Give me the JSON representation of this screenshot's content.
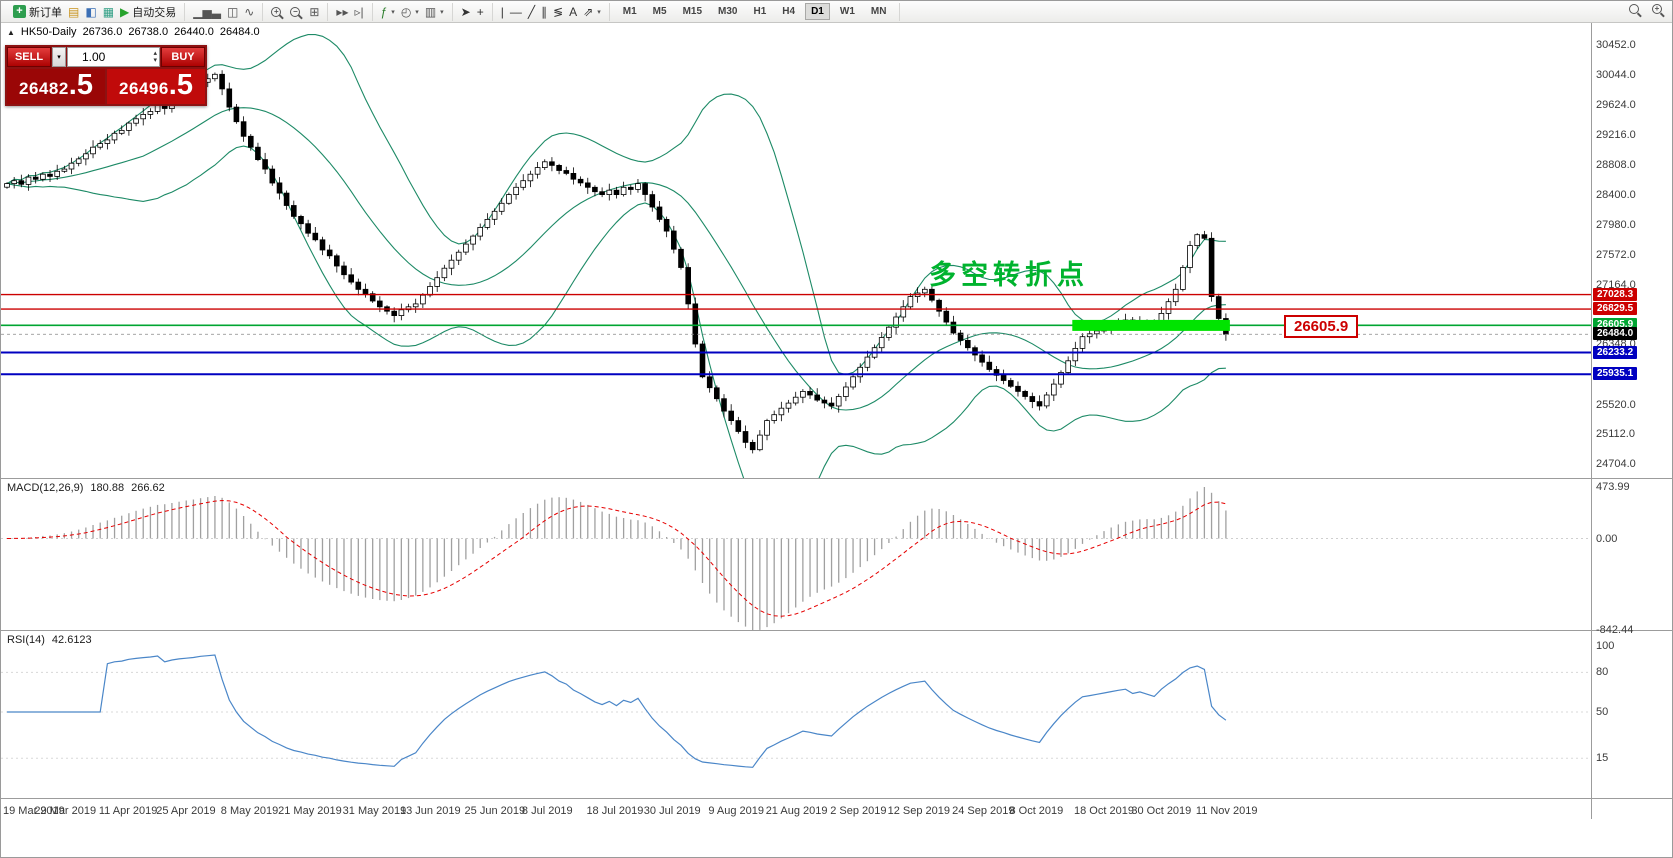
{
  "toolbar": {
    "groups": [
      {
        "name": "trade",
        "items": [
          {
            "name": "new-order-button",
            "tile": "+",
            "tile_bg": "#2e9e4f",
            "label": "新订单"
          },
          {
            "name": "market-watch-icon",
            "glyph": "▤",
            "color": "#c8931c"
          },
          {
            "name": "navigator-icon",
            "glyph": "◧",
            "color": "#3b6fb5"
          },
          {
            "name": "terminal-icon",
            "glyph": "▦",
            "color": "#2e9e83"
          },
          {
            "name": "autotrading-button",
            "glyph": "▶",
            "color": "#27a32c",
            "label": "自动交易"
          }
        ]
      },
      {
        "name": "chart-types",
        "items": [
          {
            "name": "bar-chart-icon",
            "glyph": "▁▅▃",
            "color": "#555"
          },
          {
            "name": "candlestick-chart-icon",
            "glyph": "◫",
            "color": "#555"
          },
          {
            "name": "line-chart-icon",
            "glyph": "∿",
            "color": "#555"
          }
        ]
      },
      {
        "name": "zoom",
        "items": [
          {
            "name": "zoom-in-icon",
            "mag": "+"
          },
          {
            "name": "zoom-out-icon",
            "mag": "−"
          },
          {
            "name": "tile-windows-icon",
            "glyph": "⊞",
            "color": "#555"
          }
        ]
      },
      {
        "name": "scroll",
        "items": [
          {
            "name": "auto-scroll-icon",
            "glyph": "▸▸",
            "color": "#555"
          },
          {
            "name": "chart-shift-icon",
            "glyph": "▹|",
            "color": "#555"
          }
        ]
      },
      {
        "name": "objects",
        "items": [
          {
            "name": "indicators-icon",
            "glyph": "ƒ",
            "color": "#2b7d2b",
            "caret": true
          },
          {
            "name": "periods-icon",
            "glyph": "◴",
            "color": "#555",
            "caret": true
          },
          {
            "name": "templates-icon",
            "glyph": "▥",
            "color": "#555",
            "caret": true
          }
        ]
      },
      {
        "name": "cursor",
        "items": [
          {
            "name": "cursor-icon",
            "glyph": "➤",
            "color": "#333"
          },
          {
            "name": "crosshair-icon",
            "glyph": "+",
            "color": "#333"
          }
        ]
      },
      {
        "name": "draw",
        "items": [
          {
            "name": "vertical-line-icon",
            "glyph": "|",
            "color": "#333"
          },
          {
            "name": "horizontal-line-icon",
            "glyph": "—",
            "color": "#333"
          },
          {
            "name": "trendline-icon",
            "glyph": "╱",
            "color": "#333"
          },
          {
            "name": "channel-icon",
            "glyph": "∥",
            "color": "#333"
          },
          {
            "name": "fibonacci-icon",
            "glyph": "≶",
            "color": "#333"
          },
          {
            "name": "text-icon",
            "glyph": "A",
            "color": "#333"
          },
          {
            "name": "arrows-icon",
            "glyph": "⇗",
            "color": "#333",
            "caret": true
          }
        ]
      },
      {
        "name": "timeframes",
        "timeframes": [
          "M1",
          "M5",
          "M15",
          "M30",
          "H1",
          "H4",
          "D1",
          "W1",
          "MN"
        ],
        "active": "D1"
      }
    ],
    "right_items": [
      {
        "name": "search-symbol-icon",
        "mag": ""
      },
      {
        "name": "quick-search-icon",
        "mag": "+"
      }
    ]
  },
  "chart": {
    "title": {
      "symbol_period": "HK50-Daily",
      "open": "26736.0",
      "high": "26738.0",
      "low": "26440.0",
      "close": "26484.0"
    },
    "trade_panel": {
      "sell_label": "SELL",
      "buy_label": "BUY",
      "volume": "1.00",
      "sell_price_int": "26482",
      "sell_price_frac": ".5",
      "buy_price_int": "26496",
      "buy_price_frac": ".5"
    },
    "annotation": {
      "text": "多空转折点",
      "color": "#00b32e"
    },
    "price_tag": {
      "text": "26605.9"
    }
  },
  "chart_data": {
    "type": "candlestick",
    "symbol": "HK50",
    "timeframe": "Daily",
    "last_ohlc": {
      "open": 26736.0,
      "high": 26738.0,
      "low": 26440.0,
      "close": 26484.0
    },
    "first_open": 28500,
    "closes": [
      28550,
      28590,
      28540,
      28640,
      28610,
      28680,
      28650,
      28720,
      28750,
      28830,
      28890,
      28960,
      29050,
      29100,
      29150,
      29240,
      29280,
      29380,
      29440,
      29500,
      29540,
      29620,
      29580,
      29680,
      29750,
      29800,
      29850,
      29940,
      29990,
      30050,
      29850,
      29600,
      29400,
      29200,
      29050,
      28880,
      28750,
      28560,
      28420,
      28250,
      28100,
      28000,
      27870,
      27780,
      27640,
      27560,
      27420,
      27300,
      27200,
      27100,
      27040,
      26940,
      26860,
      26800,
      26740,
      26820,
      26860,
      26900,
      27020,
      27140,
      27260,
      27390,
      27500,
      27610,
      27720,
      27830,
      27950,
      28060,
      28170,
      28280,
      28400,
      28500,
      28590,
      28680,
      28770,
      28850,
      28800,
      28730,
      28690,
      28610,
      28560,
      28500,
      28440,
      28400,
      28460,
      28400,
      28500,
      28470,
      28550,
      28400,
      28230,
      28060,
      27900,
      27650,
      27400,
      26900,
      26350,
      25900,
      25750,
      25600,
      25430,
      25300,
      25150,
      25000,
      24900,
      25100,
      25300,
      25380,
      25470,
      25540,
      25620,
      25700,
      25650,
      25580,
      25540,
      25500,
      25630,
      25760,
      25900,
      26030,
      26170,
      26300,
      26440,
      26580,
      26720,
      26860,
      27000,
      27050,
      27100,
      26950,
      26800,
      26650,
      26500,
      26400,
      26300,
      26200,
      26100,
      26000,
      25920,
      25850,
      25770,
      25700,
      25630,
      25560,
      25500,
      25650,
      25800,
      25960,
      26120,
      26290,
      26450,
      26490,
      26530,
      26570,
      26610,
      26650,
      26680,
      26620,
      26660,
      26630,
      26600,
      26770,
      26930,
      27100,
      27400,
      27700,
      27850,
      27800,
      27000,
      26700,
      26484
    ],
    "price_axis": {
      "max": 30452.0,
      "min": 24704.0,
      "labels": [
        30452.0,
        30044.0,
        29624.0,
        29216.0,
        28808.0,
        28400.0,
        27980.0,
        27572.0,
        27164.0,
        26348.0,
        25520.0,
        25112.0,
        24704.0
      ]
    },
    "x_axis_dates": [
      "19 Mar 2019",
      "29 Mar 2019",
      "11 Apr 2019",
      "25 Apr 2019",
      "8 May 2019",
      "21 May 2019",
      "31 May 2019",
      "13 Jun 2019",
      "25 Jun 2019",
      "8 Jul 2019",
      "18 Jul 2019",
      "30 Jul 2019",
      "9 Aug 2019",
      "21 Aug 2019",
      "2 Sep 2019",
      "12 Sep 2019",
      "24 Sep 2019",
      "8 Oct 2019",
      "18 Oct 2019",
      "30 Oct 2019",
      "11 Nov 2019"
    ],
    "date_indices": [
      0,
      8,
      17,
      25,
      34,
      42,
      51,
      59,
      68,
      76,
      85,
      93,
      102,
      110,
      119,
      127,
      136,
      144,
      153,
      161,
      170
    ],
    "overlays": {
      "bollinger": {
        "period": 20,
        "deviation": 2,
        "color": "#1d8a66"
      },
      "hlines": [
        {
          "price": 27028.3,
          "color": "#cc0000",
          "width": 1.4,
          "label": "27028.3"
        },
        {
          "price": 26829.5,
          "color": "#cc0000",
          "width": 1.4,
          "label": "26829.5"
        },
        {
          "price": 26605.9,
          "color": "#00a532",
          "width": 1.6,
          "label": "26605.9"
        },
        {
          "price": 26233.2,
          "color": "#0000c0",
          "width": 2,
          "label": "26233.2"
        },
        {
          "price": 25935.1,
          "color": "#0000c0",
          "width": 2,
          "label": "25935.1"
        }
      ],
      "current_price": {
        "price": 26484.0,
        "label": "26484.0",
        "badge_color": "#000000"
      },
      "highlight_zone": {
        "price": 26605.9,
        "from_index": 149,
        "to_index": 170,
        "color": "#00e400",
        "thickness": 11
      }
    },
    "macd": {
      "label": "MACD(12,26,9)",
      "value": "180.88",
      "signal_value": "266.62",
      "fast": 12,
      "slow": 26,
      "signal": 9,
      "axis_labels": [
        "473.99",
        "0.00",
        "-842.44"
      ],
      "axis_max": 473.99,
      "axis_min": -842.44,
      "histogram_color": "#a0a0a0",
      "signal_color": "#e60000"
    },
    "rsi": {
      "label": "RSI(14)",
      "value": "42.6123",
      "period": 14,
      "axis_labels": [
        "100",
        "80",
        "50",
        "15"
      ],
      "levels": [
        80,
        50,
        15
      ],
      "color": "#4a86c8"
    }
  }
}
